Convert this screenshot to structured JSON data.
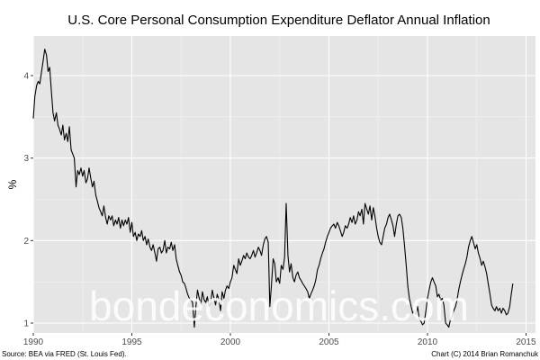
{
  "chart_data": {
    "type": "line",
    "title": "U.S. Core Personal Consumption Expenditure Deflator Annual Inflation",
    "xlabel": "",
    "ylabel": "%",
    "xlim": [
      1990.0,
      2014.6
    ],
    "ylim": [
      0.88,
      4.48
    ],
    "x_ticks": [
      1990,
      1995,
      2000,
      2005,
      2010,
      2015
    ],
    "y_ticks": [
      1,
      2,
      3,
      4
    ],
    "grid": true,
    "legend": "none",
    "colors": {
      "panel": "#e5e5e5",
      "grid_major": "#ffffff",
      "line": "#000000"
    },
    "series": [
      {
        "points": [
          [
            1990.0,
            3.48
          ],
          [
            1990.08,
            3.75
          ],
          [
            1990.17,
            3.88
          ],
          [
            1990.25,
            3.93
          ],
          [
            1990.33,
            3.9
          ],
          [
            1990.42,
            4.05
          ],
          [
            1990.5,
            4.18
          ],
          [
            1990.58,
            4.32
          ],
          [
            1990.67,
            4.25
          ],
          [
            1990.75,
            4.05
          ],
          [
            1990.83,
            4.1
          ],
          [
            1990.92,
            3.8
          ],
          [
            1991.0,
            3.55
          ],
          [
            1991.08,
            3.45
          ],
          [
            1991.17,
            3.55
          ],
          [
            1991.25,
            3.4
          ],
          [
            1991.33,
            3.35
          ],
          [
            1991.42,
            3.28
          ],
          [
            1991.5,
            3.4
          ],
          [
            1991.58,
            3.22
          ],
          [
            1991.67,
            3.3
          ],
          [
            1991.75,
            3.2
          ],
          [
            1991.83,
            3.38
          ],
          [
            1991.92,
            3.1
          ],
          [
            1992.0,
            3.05
          ],
          [
            1992.08,
            3.0
          ],
          [
            1992.17,
            2.65
          ],
          [
            1992.25,
            2.85
          ],
          [
            1992.33,
            2.8
          ],
          [
            1992.42,
            2.88
          ],
          [
            1992.5,
            2.78
          ],
          [
            1992.58,
            2.85
          ],
          [
            1992.67,
            2.7
          ],
          [
            1992.75,
            2.75
          ],
          [
            1992.83,
            2.88
          ],
          [
            1992.92,
            2.75
          ],
          [
            1993.0,
            2.65
          ],
          [
            1993.08,
            2.72
          ],
          [
            1993.17,
            2.55
          ],
          [
            1993.25,
            2.48
          ],
          [
            1993.33,
            2.4
          ],
          [
            1993.42,
            2.35
          ],
          [
            1993.5,
            2.3
          ],
          [
            1993.58,
            2.42
          ],
          [
            1993.67,
            2.28
          ],
          [
            1993.75,
            2.2
          ],
          [
            1993.83,
            2.3
          ],
          [
            1993.92,
            2.25
          ],
          [
            1994.0,
            2.3
          ],
          [
            1994.08,
            2.18
          ],
          [
            1994.17,
            2.25
          ],
          [
            1994.25,
            2.2
          ],
          [
            1994.33,
            2.28
          ],
          [
            1994.42,
            2.15
          ],
          [
            1994.5,
            2.25
          ],
          [
            1994.58,
            2.18
          ],
          [
            1994.67,
            2.25
          ],
          [
            1994.75,
            2.2
          ],
          [
            1994.83,
            2.28
          ],
          [
            1994.92,
            2.1
          ],
          [
            1995.0,
            2.22
          ],
          [
            1995.08,
            2.05
          ],
          [
            1995.17,
            2.1
          ],
          [
            1995.25,
            2.0
          ],
          [
            1995.33,
            2.08
          ],
          [
            1995.42,
            2.05
          ],
          [
            1995.5,
            2.12
          ],
          [
            1995.58,
            2.0
          ],
          [
            1995.67,
            2.05
          ],
          [
            1995.75,
            1.95
          ],
          [
            1995.83,
            2.02
          ],
          [
            1995.92,
            1.92
          ],
          [
            1996.0,
            1.88
          ],
          [
            1996.08,
            1.95
          ],
          [
            1996.17,
            1.85
          ],
          [
            1996.25,
            1.75
          ],
          [
            1996.33,
            1.9
          ],
          [
            1996.42,
            1.92
          ],
          [
            1996.5,
            1.85
          ],
          [
            1996.58,
            1.88
          ],
          [
            1996.67,
            2.0
          ],
          [
            1996.75,
            1.85
          ],
          [
            1996.83,
            1.92
          ],
          [
            1996.92,
            1.9
          ],
          [
            1997.0,
            1.98
          ],
          [
            1997.08,
            1.88
          ],
          [
            1997.17,
            1.95
          ],
          [
            1997.25,
            1.78
          ],
          [
            1997.33,
            1.7
          ],
          [
            1997.42,
            1.62
          ],
          [
            1997.5,
            1.58
          ],
          [
            1997.58,
            1.5
          ],
          [
            1997.67,
            1.48
          ],
          [
            1997.75,
            1.42
          ],
          [
            1997.83,
            1.35
          ],
          [
            1997.92,
            1.3
          ],
          [
            1998.0,
            1.28
          ],
          [
            1998.08,
            1.25
          ],
          [
            1998.17,
            0.95
          ],
          [
            1998.25,
            1.2
          ],
          [
            1998.33,
            1.4
          ],
          [
            1998.42,
            1.3
          ],
          [
            1998.5,
            1.22
          ],
          [
            1998.58,
            1.38
          ],
          [
            1998.67,
            1.28
          ],
          [
            1998.75,
            1.25
          ],
          [
            1998.83,
            1.32
          ],
          [
            1998.92,
            1.2
          ],
          [
            1999.0,
            1.25
          ],
          [
            1999.08,
            1.4
          ],
          [
            1999.17,
            1.3
          ],
          [
            1999.25,
            1.22
          ],
          [
            1999.33,
            1.35
          ],
          [
            1999.42,
            1.28
          ],
          [
            1999.5,
            1.15
          ],
          [
            1999.58,
            1.38
          ],
          [
            1999.67,
            1.3
          ],
          [
            1999.75,
            1.4
          ],
          [
            1999.83,
            1.45
          ],
          [
            1999.92,
            1.42
          ],
          [
            2000.0,
            1.5
          ],
          [
            2000.08,
            1.55
          ],
          [
            2000.17,
            1.7
          ],
          [
            2000.25,
            1.65
          ],
          [
            2000.33,
            1.6
          ],
          [
            2000.42,
            1.78
          ],
          [
            2000.5,
            1.7
          ],
          [
            2000.58,
            1.75
          ],
          [
            2000.67,
            1.82
          ],
          [
            2000.75,
            1.78
          ],
          [
            2000.83,
            1.85
          ],
          [
            2000.92,
            1.8
          ],
          [
            2001.0,
            1.78
          ],
          [
            2001.08,
            1.82
          ],
          [
            2001.17,
            1.88
          ],
          [
            2001.25,
            1.8
          ],
          [
            2001.33,
            1.85
          ],
          [
            2001.42,
            1.92
          ],
          [
            2001.5,
            1.88
          ],
          [
            2001.58,
            1.82
          ],
          [
            2001.67,
            1.95
          ],
          [
            2001.75,
            2.02
          ],
          [
            2001.83,
            2.05
          ],
          [
            2001.92,
            1.98
          ],
          [
            2002.0,
            1.2
          ],
          [
            2002.08,
            1.45
          ],
          [
            2002.17,
            1.78
          ],
          [
            2002.25,
            1.72
          ],
          [
            2002.33,
            1.5
          ],
          [
            2002.42,
            1.55
          ],
          [
            2002.5,
            1.48
          ],
          [
            2002.58,
            1.7
          ],
          [
            2002.67,
            1.65
          ],
          [
            2002.75,
            1.8
          ],
          [
            2002.83,
            2.45
          ],
          [
            2002.92,
            1.82
          ],
          [
            2003.0,
            1.62
          ],
          [
            2003.08,
            1.72
          ],
          [
            2003.17,
            1.55
          ],
          [
            2003.25,
            1.5
          ],
          [
            2003.33,
            1.58
          ],
          [
            2003.42,
            1.62
          ],
          [
            2003.5,
            1.55
          ],
          [
            2003.58,
            1.52
          ],
          [
            2003.67,
            1.48
          ],
          [
            2003.75,
            1.45
          ],
          [
            2003.83,
            1.42
          ],
          [
            2003.92,
            1.38
          ],
          [
            2004.0,
            1.3
          ],
          [
            2004.08,
            1.35
          ],
          [
            2004.17,
            1.4
          ],
          [
            2004.25,
            1.45
          ],
          [
            2004.33,
            1.52
          ],
          [
            2004.42,
            1.65
          ],
          [
            2004.5,
            1.7
          ],
          [
            2004.58,
            1.78
          ],
          [
            2004.67,
            1.85
          ],
          [
            2004.75,
            1.9
          ],
          [
            2004.83,
            1.98
          ],
          [
            2004.92,
            2.05
          ],
          [
            2005.0,
            2.1
          ],
          [
            2005.08,
            2.15
          ],
          [
            2005.17,
            2.18
          ],
          [
            2005.25,
            2.2
          ],
          [
            2005.33,
            2.15
          ],
          [
            2005.42,
            2.22
          ],
          [
            2005.5,
            2.18
          ],
          [
            2005.58,
            2.12
          ],
          [
            2005.67,
            2.05
          ],
          [
            2005.75,
            2.1
          ],
          [
            2005.83,
            2.18
          ],
          [
            2005.92,
            2.15
          ],
          [
            2006.0,
            2.2
          ],
          [
            2006.08,
            2.28
          ],
          [
            2006.17,
            2.22
          ],
          [
            2006.25,
            2.3
          ],
          [
            2006.33,
            2.2
          ],
          [
            2006.42,
            2.25
          ],
          [
            2006.5,
            2.35
          ],
          [
            2006.58,
            2.3
          ],
          [
            2006.67,
            2.38
          ],
          [
            2006.75,
            2.2
          ],
          [
            2006.83,
            2.45
          ],
          [
            2006.92,
            2.38
          ],
          [
            2007.0,
            2.32
          ],
          [
            2007.08,
            2.42
          ],
          [
            2007.17,
            2.25
          ],
          [
            2007.25,
            2.4
          ],
          [
            2007.33,
            2.3
          ],
          [
            2007.42,
            2.15
          ],
          [
            2007.5,
            2.05
          ],
          [
            2007.58,
            1.98
          ],
          [
            2007.67,
            1.95
          ],
          [
            2007.75,
            2.05
          ],
          [
            2007.83,
            2.15
          ],
          [
            2007.92,
            2.2
          ],
          [
            2008.0,
            2.28
          ],
          [
            2008.08,
            2.32
          ],
          [
            2008.17,
            2.25
          ],
          [
            2008.25,
            2.18
          ],
          [
            2008.33,
            2.05
          ],
          [
            2008.42,
            2.2
          ],
          [
            2008.5,
            2.3
          ],
          [
            2008.58,
            2.32
          ],
          [
            2008.67,
            2.28
          ],
          [
            2008.75,
            2.15
          ],
          [
            2008.83,
            1.95
          ],
          [
            2008.92,
            1.7
          ],
          [
            2009.0,
            1.45
          ],
          [
            2009.08,
            1.3
          ],
          [
            2009.17,
            1.2
          ],
          [
            2009.25,
            1.12
          ],
          [
            2009.33,
            1.15
          ],
          [
            2009.42,
            1.1
          ],
          [
            2009.5,
            1.2
          ],
          [
            2009.58,
            1.05
          ],
          [
            2009.67,
            1.02
          ],
          [
            2009.75,
            0.98
          ],
          [
            2009.83,
            1.0
          ],
          [
            2009.92,
            1.15
          ],
          [
            2010.0,
            1.3
          ],
          [
            2010.08,
            1.4
          ],
          [
            2010.17,
            1.5
          ],
          [
            2010.25,
            1.55
          ],
          [
            2010.33,
            1.5
          ],
          [
            2010.42,
            1.45
          ],
          [
            2010.5,
            1.32
          ],
          [
            2010.58,
            1.35
          ],
          [
            2010.67,
            1.28
          ],
          [
            2010.75,
            1.3
          ],
          [
            2010.83,
            1.22
          ],
          [
            2010.92,
            1.0
          ],
          [
            2011.0,
            0.98
          ],
          [
            2011.08,
            0.95
          ],
          [
            2011.17,
            1.05
          ],
          [
            2011.25,
            1.08
          ],
          [
            2011.33,
            1.15
          ],
          [
            2011.42,
            1.2
          ],
          [
            2011.5,
            1.28
          ],
          [
            2011.58,
            1.4
          ],
          [
            2011.67,
            1.5
          ],
          [
            2011.75,
            1.58
          ],
          [
            2011.83,
            1.65
          ],
          [
            2011.92,
            1.72
          ],
          [
            2012.0,
            1.8
          ],
          [
            2012.08,
            1.92
          ],
          [
            2012.17,
            2.0
          ],
          [
            2012.25,
            2.05
          ],
          [
            2012.33,
            1.98
          ],
          [
            2012.42,
            1.9
          ],
          [
            2012.5,
            1.95
          ],
          [
            2012.58,
            1.85
          ],
          [
            2012.67,
            1.78
          ],
          [
            2012.75,
            1.7
          ],
          [
            2012.83,
            1.75
          ],
          [
            2012.92,
            1.68
          ],
          [
            2013.0,
            1.6
          ],
          [
            2013.08,
            1.48
          ],
          [
            2013.17,
            1.35
          ],
          [
            2013.25,
            1.22
          ],
          [
            2013.33,
            1.18
          ],
          [
            2013.42,
            1.15
          ],
          [
            2013.5,
            1.2
          ],
          [
            2013.58,
            1.15
          ],
          [
            2013.67,
            1.18
          ],
          [
            2013.75,
            1.12
          ],
          [
            2013.83,
            1.18
          ],
          [
            2013.92,
            1.15
          ],
          [
            2014.0,
            1.1
          ],
          [
            2014.08,
            1.12
          ],
          [
            2014.17,
            1.2
          ],
          [
            2014.25,
            1.35
          ],
          [
            2014.33,
            1.48
          ]
        ]
      }
    ],
    "source": "Source: BEA via FRED (St. Louis Fed).",
    "credit": "Chart (C) 2014 Brian Romanchuk",
    "watermark": "bondeconomics.com"
  }
}
